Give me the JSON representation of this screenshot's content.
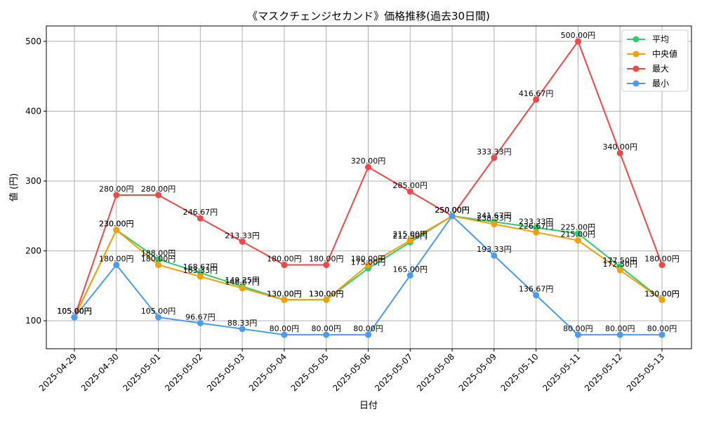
{
  "chart_data": {
    "type": "line",
    "title": "《マスクチェンジセカンド》価格推移(過去30日間)",
    "xlabel": "日付",
    "ylabel": "値 (円)",
    "categories": [
      "2025-04-29",
      "2025-04-30",
      "2025-05-01",
      "2025-05-02",
      "2025-05-03",
      "2025-05-04",
      "2025-05-05",
      "2025-05-06",
      "2025-05-07",
      "2025-05-08",
      "2025-05-09",
      "2025-05-10",
      "2025-05-11",
      "2025-05-12",
      "2025-05-13"
    ],
    "ylim": [
      60,
      522
    ],
    "yticks": [
      100,
      200,
      300,
      400,
      500
    ],
    "grid": true,
    "legend_position": "top-right",
    "label_suffix": "円",
    "series": [
      {
        "name": "平均",
        "color": "#2ecc71",
        "values": [
          105.0,
          230.0,
          188.0,
          168.67,
          149.25,
          130.0,
          130.0,
          175.0,
          212.5,
          250.0,
          241.67,
          233.33,
          225.0,
          177.5,
          130.0
        ]
      },
      {
        "name": "中央値",
        "color": "#f5a000",
        "values": [
          105.0,
          230.0,
          180.0,
          163.33,
          146.67,
          130.0,
          130.0,
          180.0,
          215.0,
          250.0,
          238.33,
          226.67,
          215.0,
          172.5,
          130.0
        ]
      },
      {
        "name": "最大",
        "color": "#f04848",
        "values": [
          105.0,
          280.0,
          280.0,
          246.67,
          213.33,
          180.0,
          180.0,
          320.0,
          285.0,
          250.0,
          333.33,
          416.67,
          500.0,
          340.0,
          180.0
        ]
      },
      {
        "name": "最小",
        "color": "#4a9cf0",
        "values": [
          105.0,
          180.0,
          105.0,
          96.67,
          88.33,
          80.0,
          80.0,
          80.0,
          165.0,
          250.0,
          193.33,
          136.67,
          80.0,
          80.0,
          80.0
        ]
      }
    ]
  }
}
